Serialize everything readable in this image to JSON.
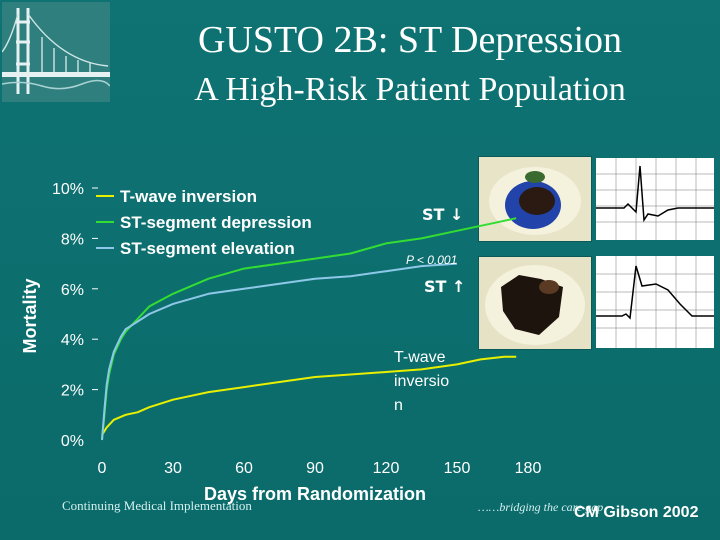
{
  "slide": {
    "title": "GUSTO 2B:  ST Depression",
    "subtitle": "A High-Risk Patient Population",
    "footer_left": "Continuing Medical Implementation",
    "footer_right": "……bridging the care gap",
    "author": "CM Gibson 2002",
    "logo_icon": "golden-gate-bridge-icon"
  },
  "annotations": {
    "st_down": "ST ↓",
    "p_value": "P < 0.001",
    "st_up": "ST ↑",
    "twave": [
      "T-wave",
      "inversio",
      "n"
    ]
  },
  "chart_data": {
    "type": "line",
    "xlabel": "Days from Randomization",
    "ylabel": "Mortality",
    "x_ticks": [
      0,
      30,
      60,
      90,
      120,
      150,
      180
    ],
    "y_ticks": [
      "0%",
      "2%",
      "4%",
      "6%",
      "8%",
      "10%"
    ],
    "xlim": [
      0,
      180
    ],
    "ylim": [
      0,
      10
    ],
    "legend_position": "top-left",
    "series": [
      {
        "name": "T-wave inversion",
        "color": "#e8f000",
        "x": [
          0,
          2,
          5,
          10,
          15,
          20,
          30,
          45,
          60,
          75,
          90,
          105,
          120,
          135,
          150,
          160,
          170,
          175
        ],
        "y": [
          0.2,
          0.5,
          0.8,
          1.0,
          1.1,
          1.3,
          1.6,
          1.9,
          2.1,
          2.3,
          2.5,
          2.6,
          2.7,
          2.8,
          3.0,
          3.2,
          3.3,
          3.3
        ]
      },
      {
        "name": "ST-segment depression",
        "color": "#33dd33",
        "x": [
          0,
          1,
          2,
          3,
          5,
          8,
          10,
          15,
          20,
          30,
          45,
          60,
          75,
          90,
          105,
          120,
          135,
          150,
          165,
          175
        ],
        "y": [
          0.0,
          1.0,
          2.0,
          2.6,
          3.4,
          4.0,
          4.3,
          4.8,
          5.3,
          5.8,
          6.4,
          6.8,
          7.0,
          7.2,
          7.4,
          7.8,
          8.0,
          8.3,
          8.6,
          8.8
        ]
      },
      {
        "name": "ST-segment elevation",
        "color": "#8ec8e8",
        "x": [
          0,
          1,
          2,
          3,
          5,
          8,
          10,
          15,
          20,
          30,
          45,
          60,
          75,
          90,
          105,
          120,
          135,
          150
        ],
        "y": [
          0.0,
          1.2,
          2.2,
          2.8,
          3.5,
          4.1,
          4.4,
          4.7,
          5.0,
          5.4,
          5.8,
          6.0,
          6.2,
          6.4,
          6.5,
          6.7,
          6.9,
          7.0
        ]
      }
    ]
  }
}
